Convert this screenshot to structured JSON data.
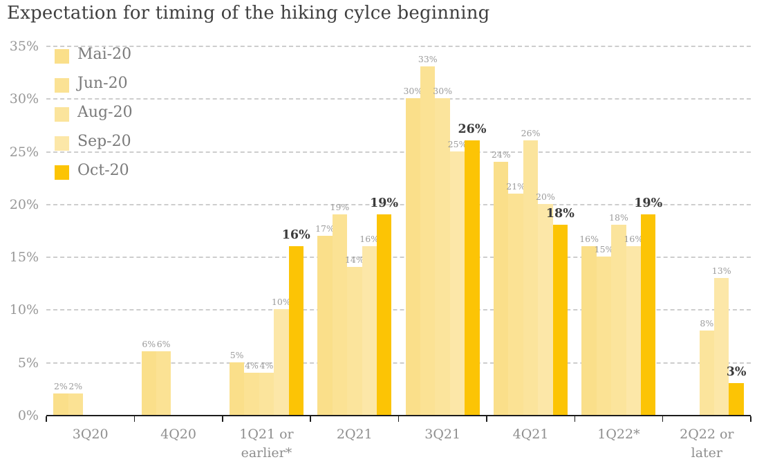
{
  "title": "Expectation for timing of the hiking cylce beginning",
  "chart_data": {
    "type": "bar",
    "title": "Expectation for timing of the hiking cylce beginning",
    "categories": [
      "3Q20",
      "4Q20",
      "1Q21 or earlier*",
      "2Q21",
      "3Q21",
      "4Q21",
      "1Q22*",
      "2Q22 or later"
    ],
    "series": [
      {
        "name": "Mai-20",
        "color": "#fadf8a",
        "values": [
          2,
          6,
          5,
          17,
          30,
          24,
          16,
          null
        ]
      },
      {
        "name": "Jun-20",
        "color": "#fbe294",
        "values": [
          2,
          6,
          4,
          19,
          33,
          21,
          15,
          null
        ]
      },
      {
        "name": "Aug-20",
        "color": "#fbe49c",
        "values": [
          null,
          null,
          4,
          14,
          30,
          26,
          18,
          8
        ]
      },
      {
        "name": "Sep-20",
        "color": "#fce7a8",
        "values": [
          null,
          null,
          10,
          16,
          25,
          20,
          16,
          13
        ]
      },
      {
        "name": "Oct-20",
        "color": "#fcc405",
        "values": [
          null,
          null,
          16,
          19,
          26,
          18,
          19,
          3
        ],
        "emphasis": true
      }
    ],
    "y_ticks": [
      0,
      5,
      10,
      15,
      20,
      25,
      30,
      35
    ],
    "y_tick_labels": [
      "0%",
      "5%",
      "10%",
      "15%",
      "20%",
      "25%",
      "30%",
      "35%"
    ],
    "ylim": [
      0,
      35
    ],
    "value_label_format": "{v}%",
    "grid": "horizontal dashed",
    "legend_position": "top-left inside plot",
    "xlabel": "",
    "ylabel": ""
  },
  "colors": {
    "accent_gold": "#fcc405",
    "pale_yellow": "#fbe294",
    "gridline": "#cdcdcd",
    "axis_line": "#1b1b1b",
    "title_text": "#3f3f3f",
    "axis_text": "#8e8e8e",
    "value_label_text": "#9b9b9b",
    "value_label_emphasis_text": "#3b3b3b",
    "legend_text": "#7a7a7a"
  }
}
